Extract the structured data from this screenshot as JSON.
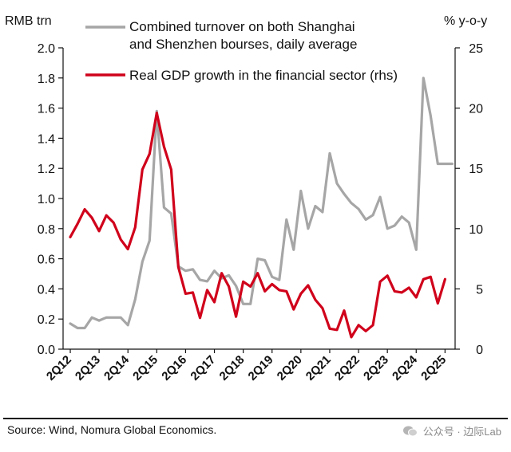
{
  "chart_data": {
    "type": "line",
    "left_axis_label": "RMB trn",
    "right_axis_label": "% y-o-y",
    "left_ylim": [
      0,
      2.0
    ],
    "right_ylim": [
      0,
      25
    ],
    "left_ticks": [
      "0.0",
      "0.2",
      "0.4",
      "0.6",
      "0.8",
      "1.0",
      "1.2",
      "1.4",
      "1.6",
      "1.8",
      "2.0"
    ],
    "right_ticks": [
      "0",
      "5",
      "10",
      "15",
      "20",
      "25"
    ],
    "x_tick_labels": [
      "2Q12",
      "2Q13",
      "2Q14",
      "2Q15",
      "2Q16",
      "2Q17",
      "2Q18",
      "2Q19",
      "2Q20",
      "2Q21",
      "2Q22",
      "2Q23",
      "2Q24",
      "2Q25"
    ],
    "x_range": [
      2012.0,
      2025.6
    ],
    "grid": false,
    "legend_placement": "top",
    "series": [
      {
        "name": "Combined turnover on both Shanghai and Shenzhen bourses, daily average",
        "axis": "left",
        "color": "#a6a6a6",
        "x": [
          2012.25,
          2012.5,
          2012.75,
          2013.0,
          2013.25,
          2013.5,
          2013.75,
          2014.0,
          2014.25,
          2014.5,
          2014.75,
          2015.0,
          2015.25,
          2015.5,
          2015.75,
          2016.0,
          2016.25,
          2016.5,
          2016.75,
          2017.0,
          2017.25,
          2017.5,
          2017.75,
          2018.0,
          2018.25,
          2018.5,
          2018.75,
          2019.0,
          2019.25,
          2019.5,
          2019.75,
          2020.0,
          2020.25,
          2020.5,
          2020.75,
          2021.0,
          2021.25,
          2021.5,
          2021.75,
          2022.0,
          2022.25,
          2022.5,
          2022.75,
          2023.0,
          2023.25,
          2023.5,
          2023.75,
          2024.0,
          2024.25,
          2024.5,
          2024.75,
          2025.0,
          2025.25,
          2025.5
        ],
        "values": [
          0.17,
          0.14,
          0.14,
          0.21,
          0.19,
          0.21,
          0.21,
          0.21,
          0.16,
          0.33,
          0.58,
          0.72,
          1.58,
          0.94,
          0.9,
          0.55,
          0.52,
          0.53,
          0.46,
          0.45,
          0.52,
          0.47,
          0.49,
          0.42,
          0.3,
          0.3,
          0.6,
          0.59,
          0.48,
          0.46,
          0.86,
          0.66,
          1.05,
          0.8,
          0.95,
          0.91,
          1.3,
          1.1,
          1.03,
          0.97,
          0.93,
          0.86,
          0.89,
          1.01,
          0.8,
          0.82,
          0.88,
          0.84,
          0.66,
          1.8,
          1.55,
          1.23,
          1.23,
          1.23
        ]
      },
      {
        "name": "Real GDP growth in the financial sector (rhs)",
        "axis": "right",
        "color": "#d0021b",
        "x": [
          2012.25,
          2012.5,
          2012.75,
          2013.0,
          2013.25,
          2013.5,
          2013.75,
          2014.0,
          2014.25,
          2014.5,
          2014.75,
          2015.0,
          2015.25,
          2015.5,
          2015.75,
          2016.0,
          2016.25,
          2016.5,
          2016.75,
          2017.0,
          2017.25,
          2017.5,
          2017.75,
          2018.0,
          2018.25,
          2018.5,
          2018.75,
          2019.0,
          2019.25,
          2019.5,
          2019.75,
          2020.0,
          2020.25,
          2020.5,
          2020.75,
          2021.0,
          2021.25,
          2021.5,
          2021.75,
          2022.0,
          2022.25,
          2022.5,
          2022.75,
          2023.0,
          2023.25,
          2023.5,
          2023.75,
          2024.0,
          2024.25,
          2024.5,
          2024.75,
          2025.0,
          2025.25
        ],
        "values": [
          9.3,
          10.4,
          11.6,
          10.9,
          9.8,
          11.1,
          10.5,
          9.1,
          8.3,
          10.1,
          14.9,
          16.2,
          19.6,
          16.8,
          14.9,
          6.8,
          4.6,
          4.7,
          2.6,
          4.9,
          3.9,
          6.3,
          5.2,
          2.7,
          5.6,
          5.2,
          6.3,
          4.8,
          5.4,
          4.9,
          4.8,
          3.3,
          4.6,
          5.3,
          4.1,
          3.4,
          1.7,
          1.6,
          3.2,
          1.0,
          2.0,
          1.5,
          2.0,
          5.6,
          6.1,
          4.8,
          4.7,
          5.1,
          4.3,
          5.8,
          6.0,
          3.8,
          5.8
        ]
      }
    ],
    "source": "Source: Wind, Nomura Global Economics.",
    "watermark": "公众号 · 边际Lab"
  }
}
